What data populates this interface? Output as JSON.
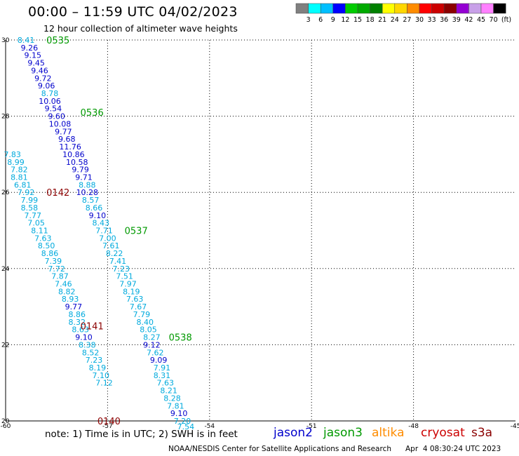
{
  "title": "00:00 – 11:59 UTC 04/02/2023",
  "subtitle": "12 hour collection of altimeter wave heights",
  "legend": {
    "unit": "(ft)",
    "ticks": [
      "3",
      "6",
      "9",
      "12",
      "15",
      "18",
      "21",
      "24",
      "27",
      "30",
      "33",
      "36",
      "39",
      "42",
      "45",
      "70"
    ],
    "colors": [
      "#808080",
      "#00ffff",
      "#00bfff",
      "#0000ff",
      "#00cc00",
      "#00aa00",
      "#008000",
      "#ffff00",
      "#ffd700",
      "#ff8c00",
      "#ff0000",
      "#cc0000",
      "#8b0000",
      "#9400d3",
      "#c8a0e8",
      "#ff80ff",
      "#000000"
    ]
  },
  "axes": {
    "x_ticks": [
      "-60",
      "-57",
      "-54",
      "-51",
      "-48",
      "-45"
    ],
    "y_ticks": [
      "30",
      "28",
      "26",
      "24",
      "22",
      "20"
    ]
  },
  "note": "note: 1) Time is in UTC; 2) SWH is in feet",
  "satellites": [
    {
      "name": "jason2",
      "color": "#0000cc"
    },
    {
      "name": "jason3",
      "color": "#009900"
    },
    {
      "name": "altika",
      "color": "#ff8c00"
    },
    {
      "name": "cryosat",
      "color": "#cc0000"
    },
    {
      "name": "s3a",
      "color": "#8b0000"
    }
  ],
  "credit": "NOAA/NESDIS Center for Satellite Applications and Research",
  "credit_time": "Apr  4 08:30:24 UTC 2023",
  "chart_data": {
    "type": "scatter",
    "xlim": [
      -60,
      -45
    ],
    "ylim": [
      20,
      30
    ],
    "grid": true,
    "tracks": [
      {
        "label": "0535",
        "label_color": "#009900",
        "label_at": [
          -58.8,
          30.0
        ]
      },
      {
        "label": "0536",
        "label_color": "#009900",
        "label_at": [
          -57.8,
          28.1
        ]
      },
      {
        "label": "0537",
        "label_color": "#009900",
        "label_at": [
          -56.5,
          25.0
        ]
      },
      {
        "label": "0538",
        "label_color": "#009900",
        "label_at": [
          -55.2,
          22.2
        ]
      },
      {
        "label": "0142",
        "label_color": "#8b0000",
        "label_at": [
          -58.8,
          26.0
        ]
      },
      {
        "label": "0141",
        "label_color": "#8b0000",
        "label_at": [
          -57.8,
          22.5
        ]
      },
      {
        "label": "0140",
        "label_color": "#8b0000",
        "label_at": [
          -57.3,
          20.0
        ]
      }
    ],
    "points": [
      {
        "lon": -59.4,
        "lat": 30.0,
        "v": "8.41",
        "c": "#00aadd"
      },
      {
        "lon": -59.3,
        "lat": 29.8,
        "v": "9.26",
        "c": "#0000cc"
      },
      {
        "lon": -59.2,
        "lat": 29.6,
        "v": "9.15",
        "c": "#0000cc"
      },
      {
        "lon": -59.1,
        "lat": 29.4,
        "v": "9.45",
        "c": "#0000cc"
      },
      {
        "lon": -59.0,
        "lat": 29.2,
        "v": "9.46",
        "c": "#0000cc"
      },
      {
        "lon": -58.9,
        "lat": 29.0,
        "v": "9.72",
        "c": "#0000cc"
      },
      {
        "lon": -58.8,
        "lat": 28.8,
        "v": "9.06",
        "c": "#0000cc"
      },
      {
        "lon": -58.7,
        "lat": 28.6,
        "v": "8.78",
        "c": "#00aadd"
      },
      {
        "lon": -58.7,
        "lat": 28.4,
        "v": "10.06",
        "c": "#0000cc"
      },
      {
        "lon": -58.6,
        "lat": 28.2,
        "v": "9.54",
        "c": "#0000cc"
      },
      {
        "lon": -58.5,
        "lat": 28.0,
        "v": "9.60",
        "c": "#0000cc"
      },
      {
        "lon": -58.4,
        "lat": 27.8,
        "v": "10.08",
        "c": "#0000cc"
      },
      {
        "lon": -58.3,
        "lat": 27.6,
        "v": "9.77",
        "c": "#0000cc"
      },
      {
        "lon": -58.2,
        "lat": 27.4,
        "v": "9.68",
        "c": "#0000cc"
      },
      {
        "lon": -58.1,
        "lat": 27.2,
        "v": "11.76",
        "c": "#0000cc"
      },
      {
        "lon": -58.0,
        "lat": 27.0,
        "v": "10.86",
        "c": "#0000cc"
      },
      {
        "lon": -57.9,
        "lat": 26.8,
        "v": "10.58",
        "c": "#0000cc"
      },
      {
        "lon": -57.8,
        "lat": 26.6,
        "v": "9.79",
        "c": "#0000cc"
      },
      {
        "lon": -57.7,
        "lat": 26.4,
        "v": "9.71",
        "c": "#0000cc"
      },
      {
        "lon": -57.6,
        "lat": 26.2,
        "v": "8.88",
        "c": "#00aadd"
      },
      {
        "lon": -57.6,
        "lat": 26.0,
        "v": "10.28",
        "c": "#0000cc"
      },
      {
        "lon": -57.5,
        "lat": 25.8,
        "v": "8.57",
        "c": "#00aadd"
      },
      {
        "lon": -57.4,
        "lat": 25.6,
        "v": "8.66",
        "c": "#00aadd"
      },
      {
        "lon": -57.3,
        "lat": 25.4,
        "v": "9.10",
        "c": "#0000cc"
      },
      {
        "lon": -57.2,
        "lat": 25.2,
        "v": "8.43",
        "c": "#00aadd"
      },
      {
        "lon": -57.1,
        "lat": 25.0,
        "v": "7.71",
        "c": "#00aadd"
      },
      {
        "lon": -57.0,
        "lat": 24.8,
        "v": "7.00",
        "c": "#00aadd"
      },
      {
        "lon": -56.9,
        "lat": 24.6,
        "v": "7.61",
        "c": "#00aadd"
      },
      {
        "lon": -56.8,
        "lat": 24.4,
        "v": "8.22",
        "c": "#00aadd"
      },
      {
        "lon": -56.7,
        "lat": 24.2,
        "v": "7.41",
        "c": "#00aadd"
      },
      {
        "lon": -56.6,
        "lat": 24.0,
        "v": "7.23",
        "c": "#00aadd"
      },
      {
        "lon": -56.5,
        "lat": 23.8,
        "v": "7.51",
        "c": "#00aadd"
      },
      {
        "lon": -56.4,
        "lat": 23.6,
        "v": "7.97",
        "c": "#00aadd"
      },
      {
        "lon": -56.3,
        "lat": 23.4,
        "v": "8.19",
        "c": "#00aadd"
      },
      {
        "lon": -56.2,
        "lat": 23.2,
        "v": "7.63",
        "c": "#00aadd"
      },
      {
        "lon": -56.1,
        "lat": 23.0,
        "v": "7.67",
        "c": "#00aadd"
      },
      {
        "lon": -56.0,
        "lat": 22.8,
        "v": "7.79",
        "c": "#00aadd"
      },
      {
        "lon": -55.9,
        "lat": 22.6,
        "v": "8.40",
        "c": "#00aadd"
      },
      {
        "lon": -55.8,
        "lat": 22.4,
        "v": "8.05",
        "c": "#00aadd"
      },
      {
        "lon": -55.7,
        "lat": 22.2,
        "v": "8.27",
        "c": "#00aadd"
      },
      {
        "lon": -55.7,
        "lat": 22.0,
        "v": "9.12",
        "c": "#0000cc"
      },
      {
        "lon": -55.6,
        "lat": 21.8,
        "v": "7.62",
        "c": "#00aadd"
      },
      {
        "lon": -55.5,
        "lat": 21.6,
        "v": "9.09",
        "c": "#0000cc"
      },
      {
        "lon": -55.4,
        "lat": 21.4,
        "v": "7.91",
        "c": "#00aadd"
      },
      {
        "lon": -55.4,
        "lat": 21.2,
        "v": "8.31",
        "c": "#00aadd"
      },
      {
        "lon": -55.3,
        "lat": 21.0,
        "v": "7.63",
        "c": "#00aadd"
      },
      {
        "lon": -55.2,
        "lat": 20.8,
        "v": "8.21",
        "c": "#00aadd"
      },
      {
        "lon": -55.1,
        "lat": 20.6,
        "v": "8.28",
        "c": "#00aadd"
      },
      {
        "lon": -55.0,
        "lat": 20.4,
        "v": "7.81",
        "c": "#00aadd"
      },
      {
        "lon": -54.9,
        "lat": 20.2,
        "v": "9.10",
        "c": "#0000cc"
      },
      {
        "lon": -54.8,
        "lat": 20.0,
        "v": "7.20",
        "c": "#00aadd"
      },
      {
        "lon": -54.7,
        "lat": 19.85,
        "v": "7.54",
        "c": "#00aadd"
      },
      {
        "lon": -59.8,
        "lat": 27.0,
        "v": "7.83",
        "c": "#00aadd"
      },
      {
        "lon": -59.7,
        "lat": 26.8,
        "v": "8.99",
        "c": "#00aadd"
      },
      {
        "lon": -59.6,
        "lat": 26.6,
        "v": "7.82",
        "c": "#00aadd"
      },
      {
        "lon": -59.6,
        "lat": 26.4,
        "v": "8.81",
        "c": "#00aadd"
      },
      {
        "lon": -59.5,
        "lat": 26.2,
        "v": "6.81",
        "c": "#00aadd"
      },
      {
        "lon": -59.4,
        "lat": 26.0,
        "v": "7.92",
        "c": "#00aadd"
      },
      {
        "lon": -59.3,
        "lat": 25.8,
        "v": "7.99",
        "c": "#00aadd"
      },
      {
        "lon": -59.3,
        "lat": 25.6,
        "v": "8.58",
        "c": "#00aadd"
      },
      {
        "lon": -59.2,
        "lat": 25.4,
        "v": "7.77",
        "c": "#00aadd"
      },
      {
        "lon": -59.1,
        "lat": 25.2,
        "v": "7.05",
        "c": "#00aadd"
      },
      {
        "lon": -59.0,
        "lat": 25.0,
        "v": "8.11",
        "c": "#00aadd"
      },
      {
        "lon": -58.9,
        "lat": 24.8,
        "v": "7.63",
        "c": "#00aadd"
      },
      {
        "lon": -58.8,
        "lat": 24.6,
        "v": "8.50",
        "c": "#00aadd"
      },
      {
        "lon": -58.7,
        "lat": 24.4,
        "v": "8.86",
        "c": "#00aadd"
      },
      {
        "lon": -58.6,
        "lat": 24.2,
        "v": "7.39",
        "c": "#00aadd"
      },
      {
        "lon": -58.5,
        "lat": 24.0,
        "v": "7.72",
        "c": "#00aadd"
      },
      {
        "lon": -58.4,
        "lat": 23.8,
        "v": "7.87",
        "c": "#00aadd"
      },
      {
        "lon": -58.3,
        "lat": 23.6,
        "v": "7.46",
        "c": "#00aadd"
      },
      {
        "lon": -58.2,
        "lat": 23.4,
        "v": "8.82",
        "c": "#00aadd"
      },
      {
        "lon": -58.1,
        "lat": 23.2,
        "v": "8.93",
        "c": "#00aadd"
      },
      {
        "lon": -58.0,
        "lat": 23.0,
        "v": "9.77",
        "c": "#0000cc"
      },
      {
        "lon": -57.9,
        "lat": 22.8,
        "v": "8.86",
        "c": "#00aadd"
      },
      {
        "lon": -57.9,
        "lat": 22.6,
        "v": "8.32",
        "c": "#00aadd"
      },
      {
        "lon": -57.8,
        "lat": 22.4,
        "v": "8.63",
        "c": "#00aadd"
      },
      {
        "lon": -57.7,
        "lat": 22.2,
        "v": "9.10",
        "c": "#0000cc"
      },
      {
        "lon": -57.6,
        "lat": 22.0,
        "v": "8.38",
        "c": "#00aadd"
      },
      {
        "lon": -57.5,
        "lat": 21.8,
        "v": "8.52",
        "c": "#00aadd"
      },
      {
        "lon": -57.4,
        "lat": 21.6,
        "v": "7.23",
        "c": "#00aadd"
      },
      {
        "lon": -57.3,
        "lat": 21.4,
        "v": "8.19",
        "c": "#00aadd"
      },
      {
        "lon": -57.2,
        "lat": 21.2,
        "v": "7.10",
        "c": "#00aadd"
      },
      {
        "lon": -57.1,
        "lat": 21.0,
        "v": "7.12",
        "c": "#00aadd"
      }
    ]
  }
}
